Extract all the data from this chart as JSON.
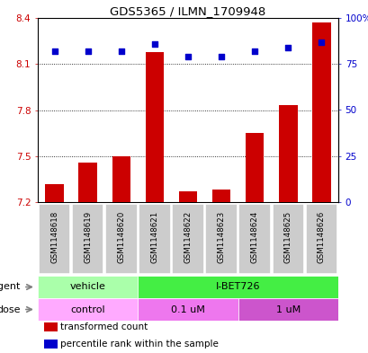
{
  "title": "GDS5365 / ILMN_1709948",
  "samples": [
    "GSM1148618",
    "GSM1148619",
    "GSM1148620",
    "GSM1148621",
    "GSM1148622",
    "GSM1148623",
    "GSM1148624",
    "GSM1148625",
    "GSM1148626"
  ],
  "bar_values": [
    7.32,
    7.46,
    7.5,
    8.18,
    7.27,
    7.28,
    7.65,
    7.83,
    8.37
  ],
  "dot_values": [
    82,
    82,
    82,
    86,
    79,
    79,
    82,
    84,
    87
  ],
  "ylim_left": [
    7.2,
    8.4
  ],
  "ylim_right": [
    0,
    100
  ],
  "yticks_left": [
    7.2,
    7.5,
    7.8,
    8.1,
    8.4
  ],
  "yticks_right": [
    0,
    25,
    50,
    75,
    100
  ],
  "yticklabels_right": [
    "0",
    "25",
    "50",
    "75",
    "100%"
  ],
  "bar_color": "#cc0000",
  "dot_color": "#0000cc",
  "bar_base": 7.2,
  "agent_labels": [
    {
      "label": "vehicle",
      "start": 0,
      "end": 3,
      "color": "#aaffaa"
    },
    {
      "label": "I-BET726",
      "start": 3,
      "end": 9,
      "color": "#44ee44"
    }
  ],
  "dose_labels": [
    {
      "label": "control",
      "start": 0,
      "end": 3,
      "color": "#ffaaff"
    },
    {
      "label": "0.1 uM",
      "start": 3,
      "end": 6,
      "color": "#ee77ee"
    },
    {
      "label": "1 uM",
      "start": 6,
      "end": 9,
      "color": "#cc55cc"
    }
  ],
  "legend_items": [
    {
      "label": "transformed count",
      "color": "#cc0000"
    },
    {
      "label": "percentile rank within the sample",
      "color": "#0000cc"
    }
  ],
  "sample_bg": "#cccccc",
  "sample_border": "#ffffff",
  "tick_color_left": "#cc0000",
  "tick_color_right": "#0000cc"
}
